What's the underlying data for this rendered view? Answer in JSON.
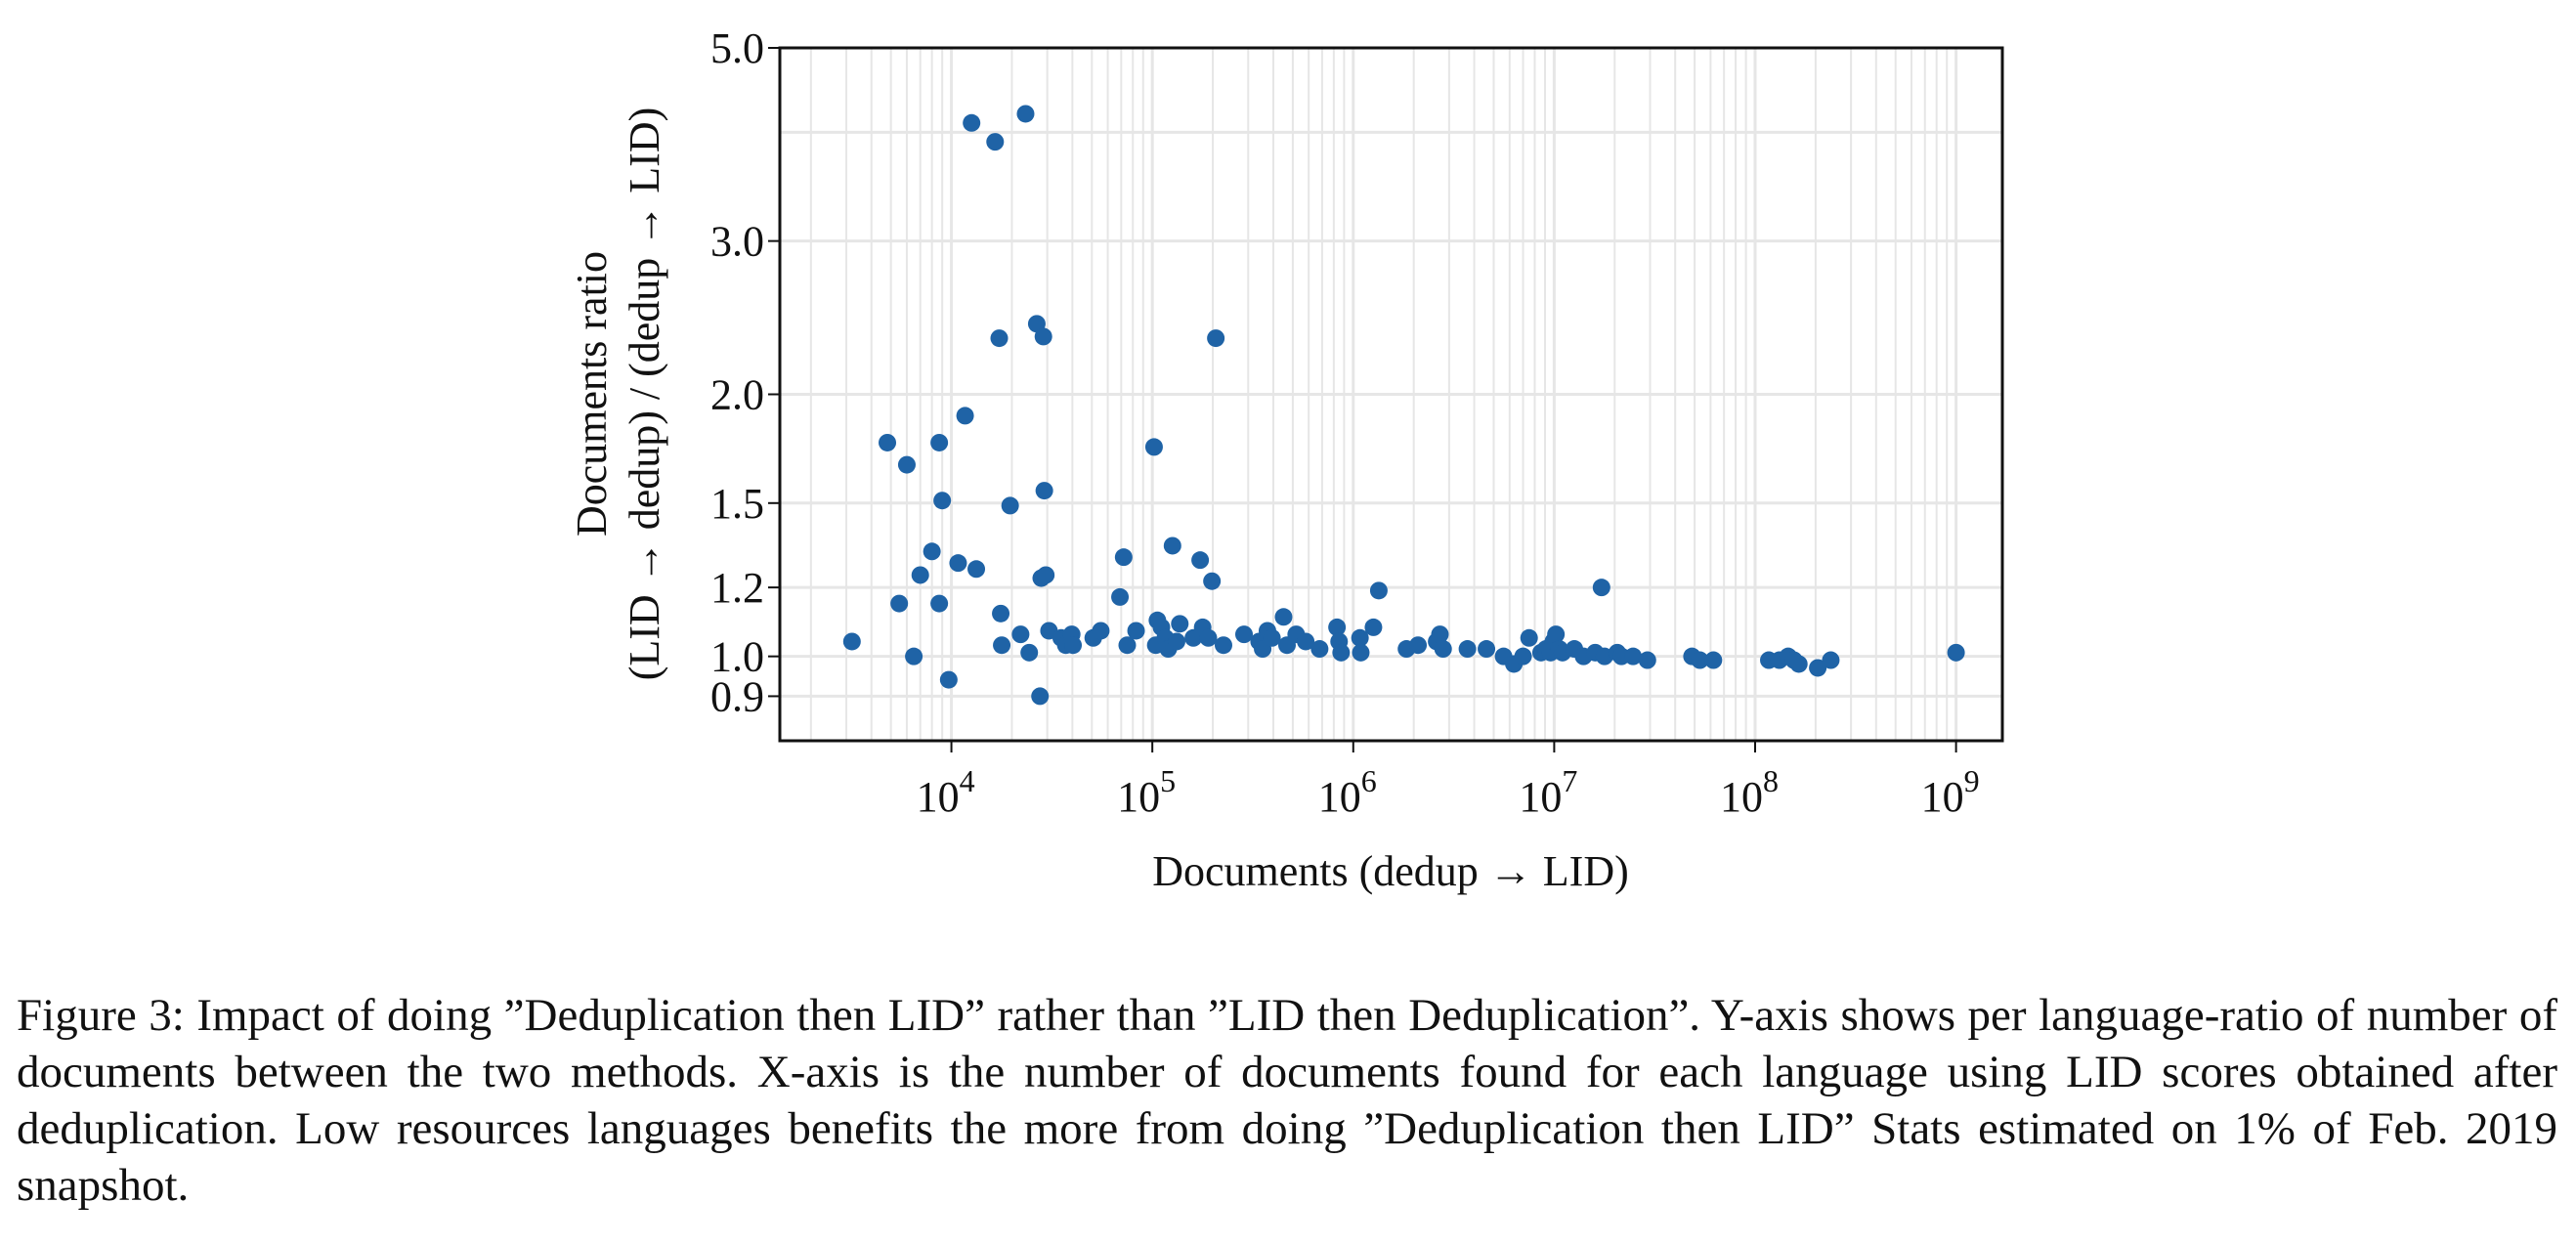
{
  "chart_data": {
    "type": "scatter",
    "title": "",
    "xlabel": "Documents (dedup → LID)",
    "ylabel_line1": "Documents ratio",
    "ylabel_line2": "(LID → dedup) / (dedup → LID)",
    "x_scale": "log",
    "y_scale": "log",
    "xlim": [
      1400,
      1700000000
    ],
    "ylim": [
      0.8,
      5.0
    ],
    "x_ticks": [
      10000,
      100000,
      1000000,
      10000000,
      100000000,
      1000000000
    ],
    "x_tick_labels": [
      {
        "base": "10",
        "exp": "4"
      },
      {
        "base": "10",
        "exp": "5"
      },
      {
        "base": "10",
        "exp": "6"
      },
      {
        "base": "10",
        "exp": "7"
      },
      {
        "base": "10",
        "exp": "8"
      },
      {
        "base": "10",
        "exp": "9"
      }
    ],
    "y_ticks": [
      0.9,
      1.0,
      1.2,
      1.5,
      2.0,
      3.0,
      5.0
    ],
    "y_tick_labels": [
      "0.9",
      "1.0",
      "1.2",
      "1.5",
      "2.0",
      "3.0",
      "5.0"
    ],
    "grid": true,
    "marker_color": "#1f63a6",
    "grid_color": "#e6e6e6",
    "points": [
      {
        "x": 3200,
        "y": 1.04
      },
      {
        "x": 4800,
        "y": 1.76
      },
      {
        "x": 5500,
        "y": 1.15
      },
      {
        "x": 6000,
        "y": 1.66
      },
      {
        "x": 6500,
        "y": 1.0
      },
      {
        "x": 7000,
        "y": 1.24
      },
      {
        "x": 8000,
        "y": 1.32
      },
      {
        "x": 8700,
        "y": 1.76
      },
      {
        "x": 8700,
        "y": 1.15
      },
      {
        "x": 9000,
        "y": 1.51
      },
      {
        "x": 9700,
        "y": 0.94
      },
      {
        "x": 10800,
        "y": 1.28
      },
      {
        "x": 11700,
        "y": 1.89
      },
      {
        "x": 12600,
        "y": 4.1
      },
      {
        "x": 13300,
        "y": 1.26
      },
      {
        "x": 16500,
        "y": 3.9
      },
      {
        "x": 17300,
        "y": 2.32
      },
      {
        "x": 17600,
        "y": 1.12
      },
      {
        "x": 17800,
        "y": 1.03
      },
      {
        "x": 19600,
        "y": 1.49
      },
      {
        "x": 22100,
        "y": 1.06
      },
      {
        "x": 23400,
        "y": 4.2
      },
      {
        "x": 24400,
        "y": 1.01
      },
      {
        "x": 26600,
        "y": 2.41
      },
      {
        "x": 27600,
        "y": 0.9
      },
      {
        "x": 28000,
        "y": 1.23
      },
      {
        "x": 28700,
        "y": 2.33
      },
      {
        "x": 29000,
        "y": 1.55
      },
      {
        "x": 29500,
        "y": 1.24
      },
      {
        "x": 30600,
        "y": 1.07
      },
      {
        "x": 35200,
        "y": 1.05
      },
      {
        "x": 37100,
        "y": 1.03
      },
      {
        "x": 39700,
        "y": 1.06
      },
      {
        "x": 40300,
        "y": 1.03
      },
      {
        "x": 50800,
        "y": 1.05
      },
      {
        "x": 55400,
        "y": 1.07
      },
      {
        "x": 69000,
        "y": 1.17
      },
      {
        "x": 72000,
        "y": 1.3
      },
      {
        "x": 75000,
        "y": 1.03
      },
      {
        "x": 83000,
        "y": 1.07
      },
      {
        "x": 102000,
        "y": 1.74
      },
      {
        "x": 104000,
        "y": 1.03
      },
      {
        "x": 106000,
        "y": 1.1
      },
      {
        "x": 111000,
        "y": 1.08
      },
      {
        "x": 116000,
        "y": 1.05
      },
      {
        "x": 120000,
        "y": 1.02
      },
      {
        "x": 126000,
        "y": 1.34
      },
      {
        "x": 132000,
        "y": 1.04
      },
      {
        "x": 137000,
        "y": 1.09
      },
      {
        "x": 160000,
        "y": 1.05
      },
      {
        "x": 173000,
        "y": 1.29
      },
      {
        "x": 178000,
        "y": 1.08
      },
      {
        "x": 190000,
        "y": 1.05
      },
      {
        "x": 198000,
        "y": 1.22
      },
      {
        "x": 207000,
        "y": 2.32
      },
      {
        "x": 226000,
        "y": 1.03
      },
      {
        "x": 286000,
        "y": 1.06
      },
      {
        "x": 340000,
        "y": 1.04
      },
      {
        "x": 354000,
        "y": 1.02
      },
      {
        "x": 374000,
        "y": 1.07
      },
      {
        "x": 394000,
        "y": 1.05
      },
      {
        "x": 450000,
        "y": 1.11
      },
      {
        "x": 468000,
        "y": 1.03
      },
      {
        "x": 520000,
        "y": 1.06
      },
      {
        "x": 580000,
        "y": 1.04
      },
      {
        "x": 680000,
        "y": 1.02
      },
      {
        "x": 830000,
        "y": 1.08
      },
      {
        "x": 850000,
        "y": 1.04
      },
      {
        "x": 870000,
        "y": 1.01
      },
      {
        "x": 1080000,
        "y": 1.05
      },
      {
        "x": 1090000,
        "y": 1.01
      },
      {
        "x": 1260000,
        "y": 1.08
      },
      {
        "x": 1340000,
        "y": 1.19
      },
      {
        "x": 1840000,
        "y": 1.02
      },
      {
        "x": 2100000,
        "y": 1.03
      },
      {
        "x": 2600000,
        "y": 1.04
      },
      {
        "x": 2700000,
        "y": 1.06
      },
      {
        "x": 2800000,
        "y": 1.02
      },
      {
        "x": 3700000,
        "y": 1.02
      },
      {
        "x": 4600000,
        "y": 1.02
      },
      {
        "x": 5600000,
        "y": 1.0
      },
      {
        "x": 6300000,
        "y": 0.98
      },
      {
        "x": 7000000,
        "y": 1.0
      },
      {
        "x": 7500000,
        "y": 1.05
      },
      {
        "x": 8600000,
        "y": 1.01
      },
      {
        "x": 9100000,
        "y": 1.02
      },
      {
        "x": 9600000,
        "y": 1.01
      },
      {
        "x": 9900000,
        "y": 1.04
      },
      {
        "x": 10200000,
        "y": 1.06
      },
      {
        "x": 10600000,
        "y": 1.02
      },
      {
        "x": 11000000,
        "y": 1.01
      },
      {
        "x": 12600000,
        "y": 1.02
      },
      {
        "x": 14000000,
        "y": 1.0
      },
      {
        "x": 16000000,
        "y": 1.01
      },
      {
        "x": 17200000,
        "y": 1.2
      },
      {
        "x": 17800000,
        "y": 1.0
      },
      {
        "x": 20600000,
        "y": 1.01
      },
      {
        "x": 21600000,
        "y": 1.0
      },
      {
        "x": 24700000,
        "y": 1.0
      },
      {
        "x": 29100000,
        "y": 0.99
      },
      {
        "x": 48500000,
        "y": 1.0
      },
      {
        "x": 53100000,
        "y": 0.99
      },
      {
        "x": 62000000,
        "y": 0.99
      },
      {
        "x": 117000000,
        "y": 0.99
      },
      {
        "x": 132000000,
        "y": 0.99
      },
      {
        "x": 146000000,
        "y": 1.0
      },
      {
        "x": 156000000,
        "y": 0.99
      },
      {
        "x": 165000000,
        "y": 0.98
      },
      {
        "x": 205000000,
        "y": 0.97
      },
      {
        "x": 238000000,
        "y": 0.99
      },
      {
        "x": 1000000000,
        "y": 1.01
      }
    ]
  },
  "caption": "Figure 3: Impact of doing ”Deduplication then LID” rather than ”LID then Deduplication”. Y-axis shows per language-ratio of number of documents between the two methods. X-axis is the number of documents found for each language using LID scores obtained after deduplication. Low resources languages benefits the more from doing ”Deduplication then LID” Stats estimated on 1% of Feb. 2019 snapshot."
}
